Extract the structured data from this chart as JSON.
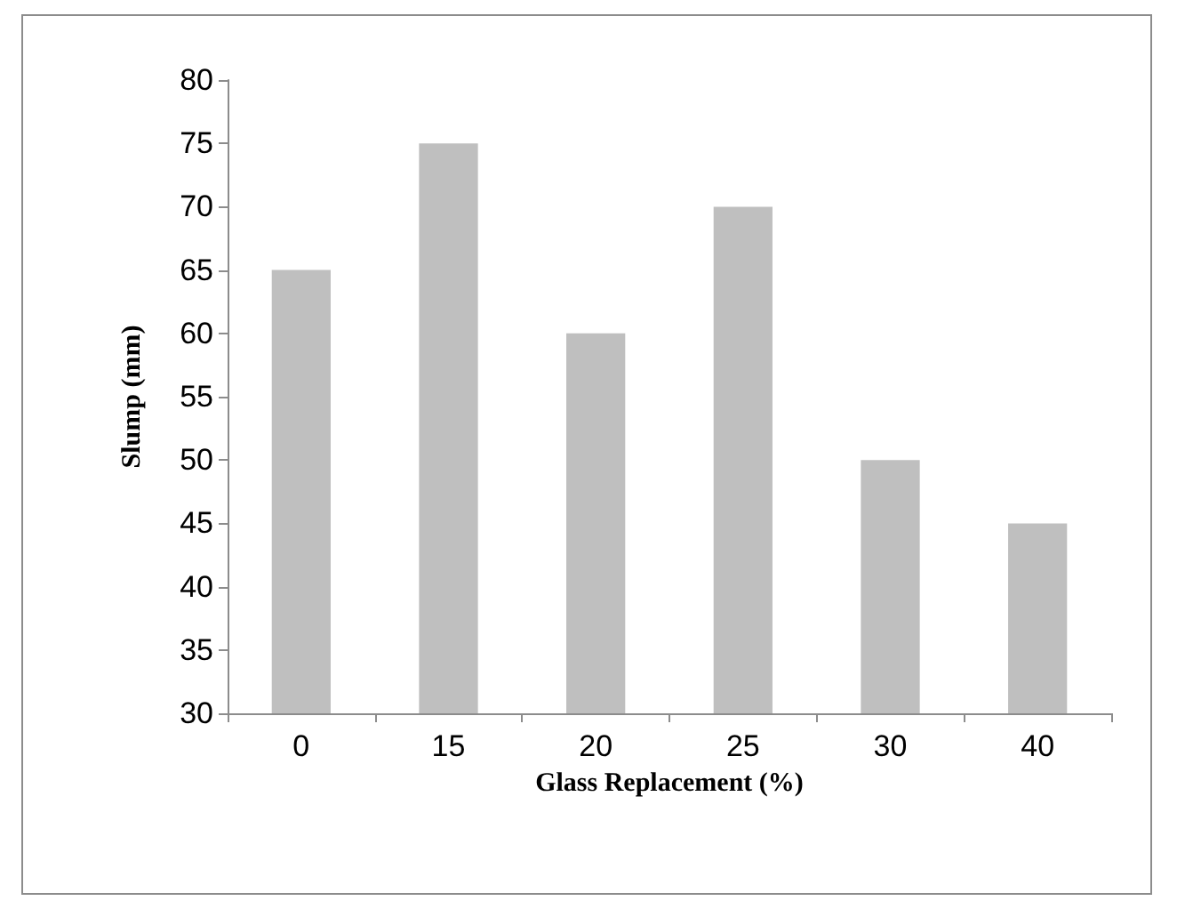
{
  "chart_data": {
    "type": "bar",
    "xlabel": "Glass Replacement (%)",
    "ylabel": "Slump (mm)",
    "categories": [
      "0",
      "15",
      "20",
      "25",
      "30",
      "40"
    ],
    "values": [
      65,
      75,
      60,
      70,
      50,
      45
    ],
    "color": "#bfbfbf",
    "ylim": [
      30,
      80
    ],
    "yticks": [
      30,
      35,
      40,
      45,
      50,
      55,
      60,
      65,
      70,
      75,
      80
    ],
    "grid": false
  }
}
